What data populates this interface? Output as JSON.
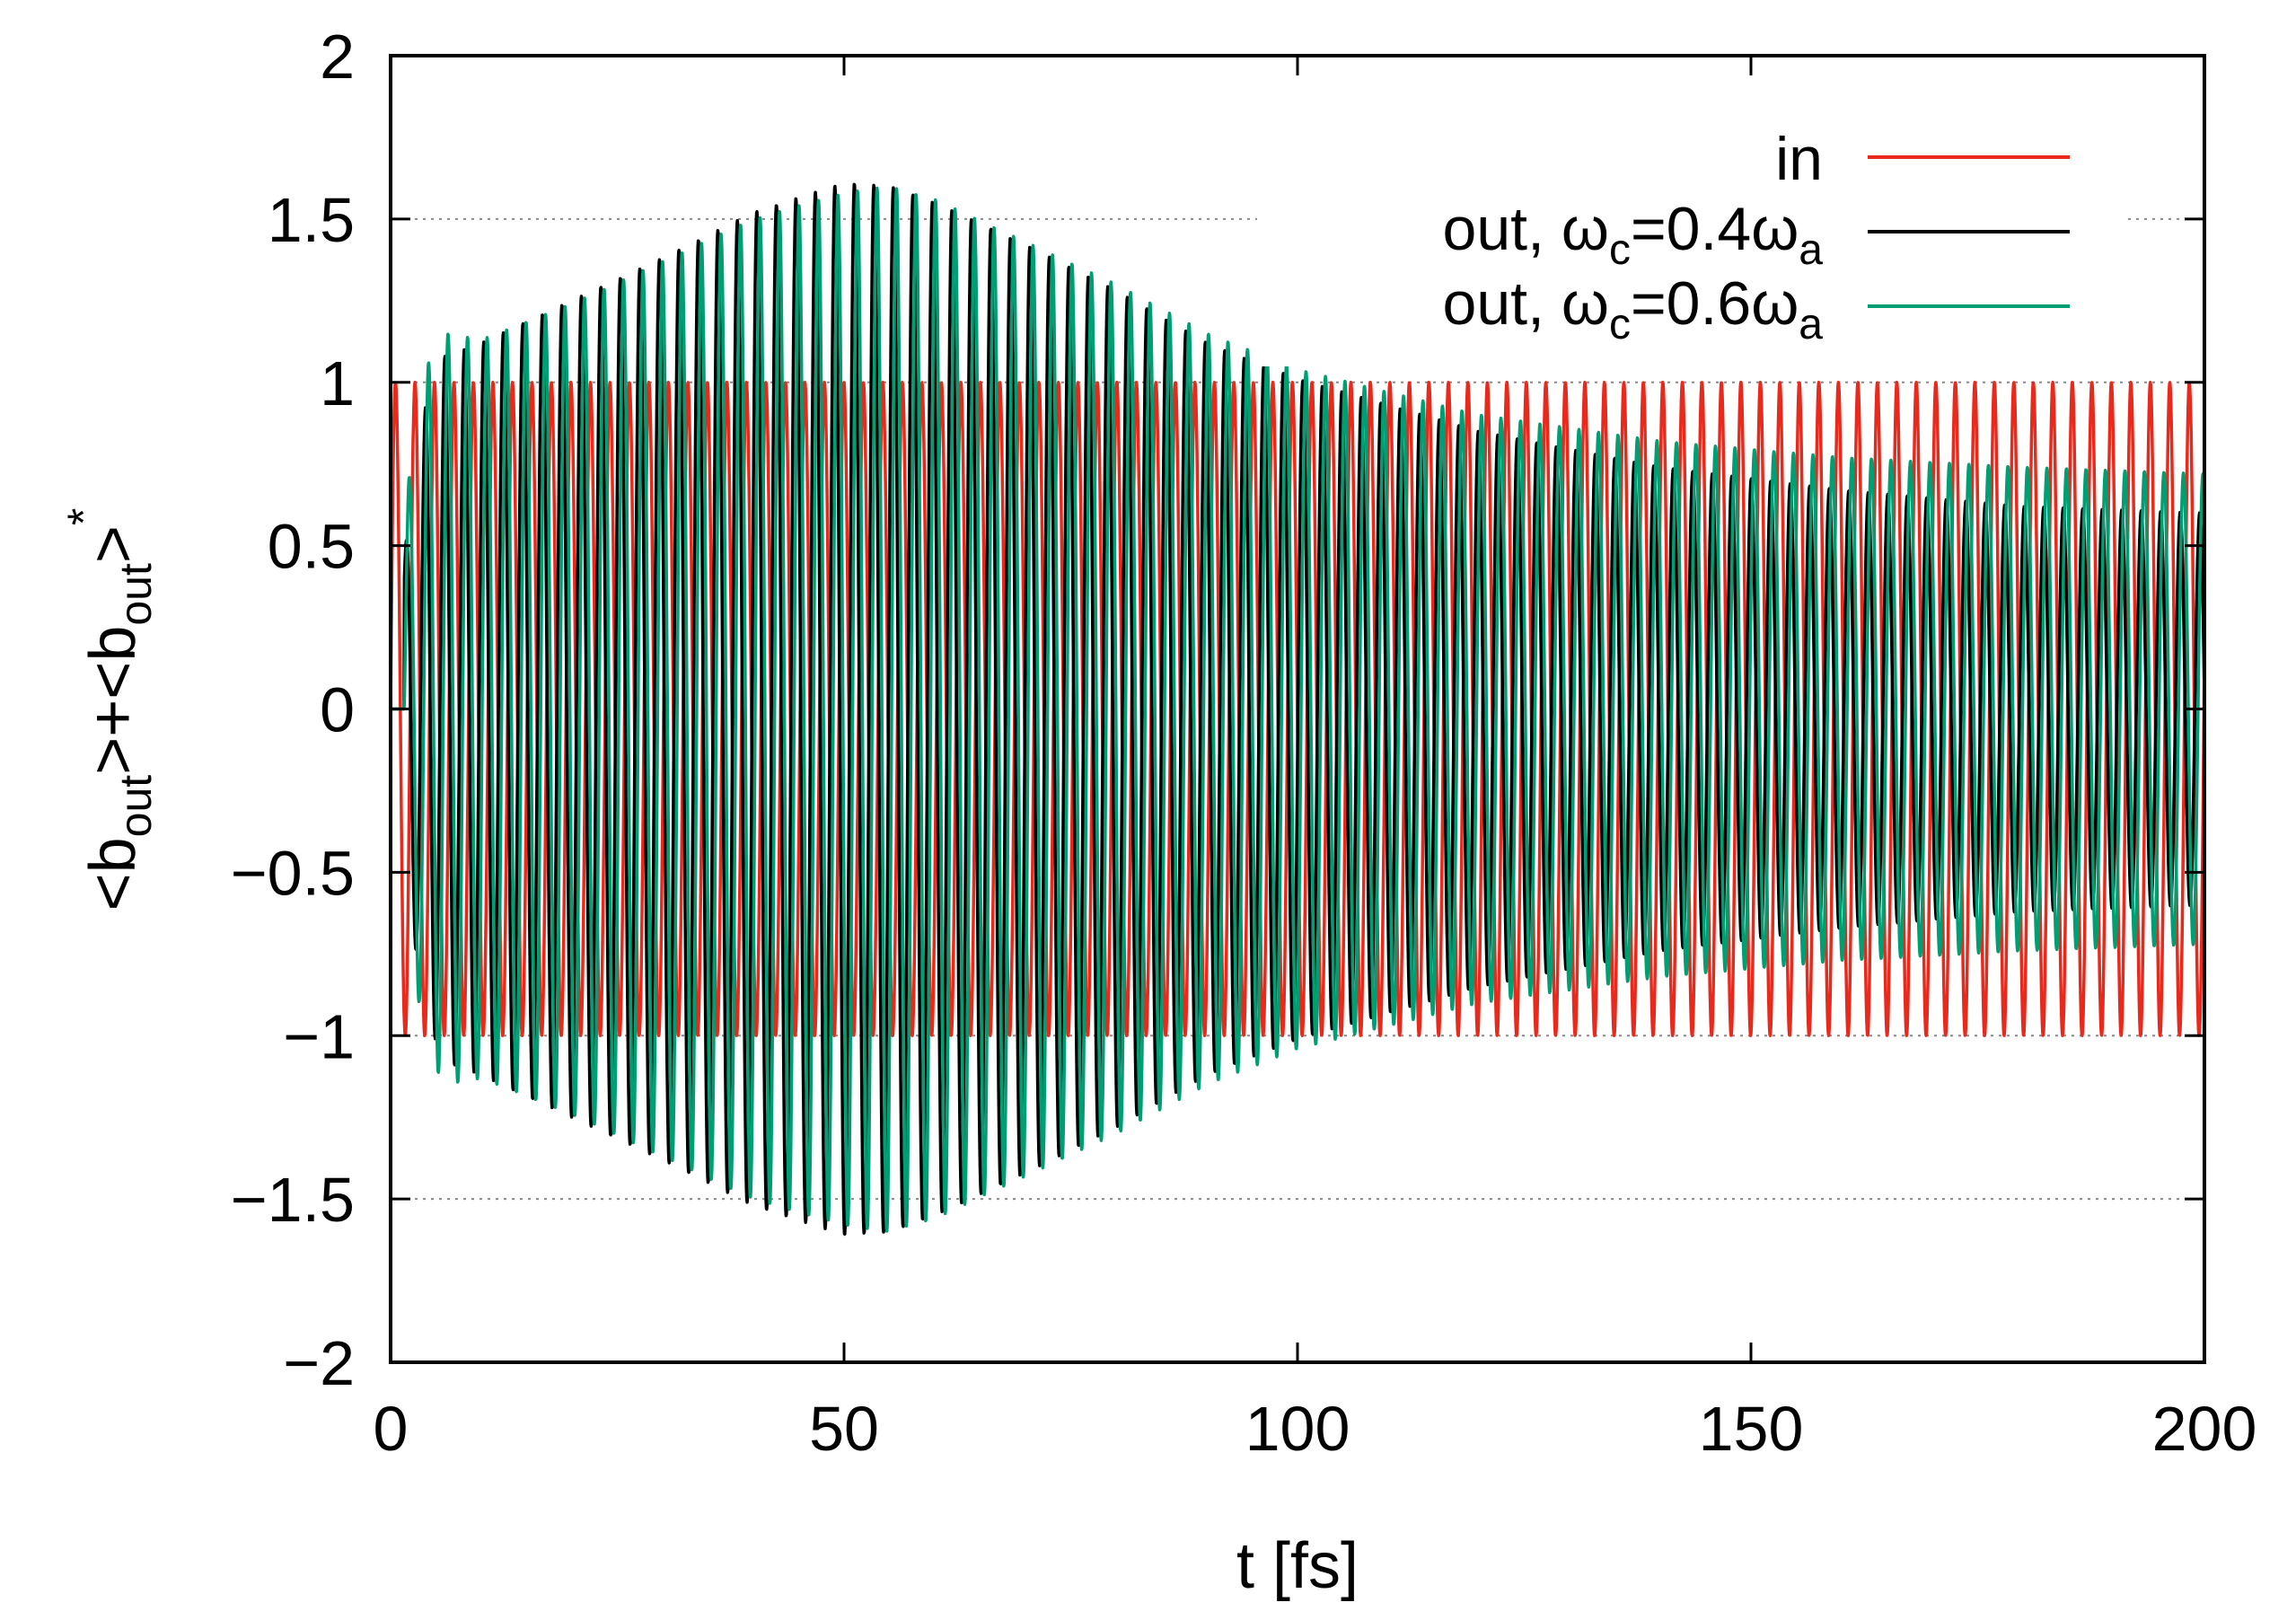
{
  "chart_data": {
    "type": "line",
    "title": "",
    "xlabel": "t [fs]",
    "ylabel_parts": {
      "open1": "<b",
      "sub1": "out",
      "mid": ">+<b",
      "sub2": "out",
      "close": ">",
      "sup": "*"
    },
    "xlim": [
      0,
      200
    ],
    "ylim": [
      -2,
      2
    ],
    "xticks": [
      0,
      50,
      100,
      150,
      200
    ],
    "xtick_labels": [
      "0",
      "50",
      "100",
      "150",
      "200"
    ],
    "yticks": [
      -2,
      -1.5,
      -1,
      -0.5,
      0,
      0.5,
      1,
      1.5,
      2
    ],
    "ytick_labels": [
      "−2",
      "−1.5",
      "−1",
      "−0.5",
      "0",
      "0.5",
      "1",
      "1.5",
      "2"
    ],
    "grid_y": [
      -1.5,
      -1,
      1,
      1.5
    ],
    "legend_position": "top-right",
    "oscillation": {
      "period_fs": 2.15,
      "input_start_fs": 0,
      "output_start_fs": 1.5
    },
    "series": [
      {
        "name": "in",
        "label_main": "in",
        "color": "#e8291c",
        "envelope": {
          "t": [
            0,
            200
          ],
          "amp": [
            1.0,
            1.0
          ]
        }
      },
      {
        "name": "out, ωc=0.4ωa",
        "label_main": "out, ω",
        "label_sub1": "c",
        "label_mid": "=0.4ω",
        "label_sub2": "a",
        "color": "#000000",
        "phase_fs": 0.35,
        "envelope": {
          "t": [
            0,
            2,
            4,
            6,
            10,
            20,
            30,
            40,
            50,
            55,
            60,
            70,
            80,
            90,
            100,
            110,
            120,
            140,
            160,
            180,
            200
          ],
          "amp": [
            0.0,
            0.6,
            0.95,
            1.08,
            1.12,
            1.25,
            1.38,
            1.52,
            1.61,
            1.6,
            1.55,
            1.42,
            1.28,
            1.12,
            1.01,
            0.93,
            0.85,
            0.74,
            0.67,
            0.62,
            0.6
          ]
        }
      },
      {
        "name": "out, ωc=0.6ωa",
        "label_main": "out, ω",
        "label_sub1": "c",
        "label_mid": "=0.6ω",
        "label_sub2": "a",
        "color": "#009e73",
        "phase_fs": 0.0,
        "envelope": {
          "t": [
            0,
            2,
            4,
            6,
            10,
            20,
            30,
            40,
            50,
            55,
            60,
            70,
            80,
            90,
            100,
            110,
            120,
            140,
            160,
            180,
            200
          ],
          "amp": [
            0.0,
            0.7,
            1.05,
            1.15,
            1.13,
            1.24,
            1.37,
            1.5,
            1.58,
            1.6,
            1.56,
            1.43,
            1.3,
            1.15,
            1.04,
            0.97,
            0.9,
            0.82,
            0.77,
            0.74,
            0.72
          ]
        }
      }
    ]
  }
}
